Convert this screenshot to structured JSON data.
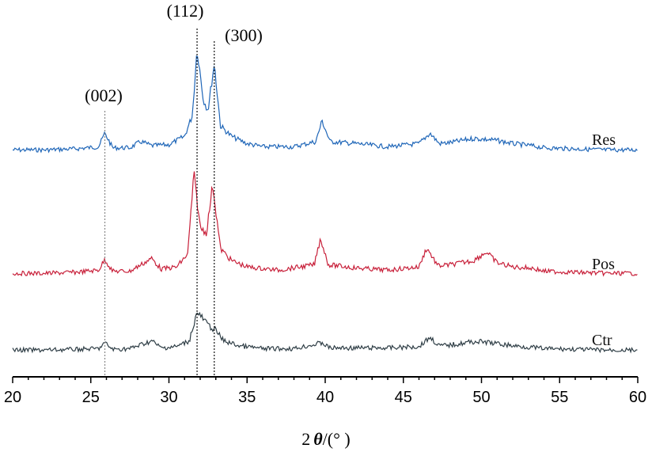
{
  "chart_data": {
    "type": "line",
    "title": "",
    "xlabel_parts": [
      "2",
      "θ",
      "/(°  )"
    ],
    "ylabel": "",
    "xlim": [
      20,
      60
    ],
    "x_ticks": [
      20,
      25,
      30,
      35,
      40,
      45,
      50,
      55,
      60
    ],
    "x_tick_labels": [
      "20",
      "25",
      "30",
      "35",
      "40",
      "45",
      "50",
      "55",
      "60"
    ],
    "grid": false,
    "legend": "inline-right",
    "y_axis_visible": false,
    "peak_markers": [
      {
        "label": "(002)",
        "x": 25.9
      },
      {
        "label": "(112)",
        "x": 31.8
      },
      {
        "label": "(300)",
        "x": 32.9
      }
    ],
    "series": [
      {
        "name": "Res",
        "color": "#1f66b8",
        "points": [
          [
            20,
            0.02
          ],
          [
            22,
            0.02
          ],
          [
            24,
            0.03
          ],
          [
            25.5,
            0.05
          ],
          [
            25.9,
            0.18
          ],
          [
            26.4,
            0.04
          ],
          [
            27.5,
            0.04
          ],
          [
            28.2,
            0.1
          ],
          [
            28.9,
            0.06
          ],
          [
            30,
            0.07
          ],
          [
            31,
            0.15
          ],
          [
            31.5,
            0.35
          ],
          [
            31.8,
            1.0
          ],
          [
            32.2,
            0.5
          ],
          [
            32.5,
            0.4
          ],
          [
            32.9,
            0.85
          ],
          [
            33.3,
            0.25
          ],
          [
            34,
            0.15
          ],
          [
            35,
            0.08
          ],
          [
            36,
            0.05
          ],
          [
            38,
            0.05
          ],
          [
            39.4,
            0.1
          ],
          [
            39.8,
            0.3
          ],
          [
            40.3,
            0.1
          ],
          [
            42,
            0.08
          ],
          [
            44,
            0.05
          ],
          [
            46,
            0.08
          ],
          [
            46.7,
            0.18
          ],
          [
            47.3,
            0.08
          ],
          [
            48,
            0.09
          ],
          [
            49.5,
            0.13
          ],
          [
            50.3,
            0.12
          ],
          [
            51,
            0.11
          ],
          [
            52,
            0.08
          ],
          [
            53.2,
            0.06
          ],
          [
            54,
            0.04
          ],
          [
            56,
            0.03
          ],
          [
            58,
            0.02
          ],
          [
            60,
            0.02
          ]
        ]
      },
      {
        "name": "Pos",
        "color": "#c8203a",
        "points": [
          [
            20,
            0.02
          ],
          [
            22,
            0.02
          ],
          [
            24,
            0.03
          ],
          [
            25.5,
            0.05
          ],
          [
            25.9,
            0.15
          ],
          [
            26.4,
            0.04
          ],
          [
            27.5,
            0.04
          ],
          [
            28.9,
            0.16
          ],
          [
            29.5,
            0.06
          ],
          [
            30.5,
            0.08
          ],
          [
            31.2,
            0.2
          ],
          [
            31.6,
            0.95
          ],
          [
            32,
            0.45
          ],
          [
            32.4,
            0.4
          ],
          [
            32.8,
            0.85
          ],
          [
            33.3,
            0.25
          ],
          [
            34,
            0.14
          ],
          [
            35,
            0.08
          ],
          [
            37,
            0.05
          ],
          [
            39.3,
            0.1
          ],
          [
            39.7,
            0.35
          ],
          [
            40.2,
            0.1
          ],
          [
            42,
            0.07
          ],
          [
            44,
            0.05
          ],
          [
            46,
            0.08
          ],
          [
            46.5,
            0.26
          ],
          [
            47.2,
            0.09
          ],
          [
            48,
            0.1
          ],
          [
            49.5,
            0.14
          ],
          [
            50.3,
            0.22
          ],
          [
            51,
            0.12
          ],
          [
            52,
            0.08
          ],
          [
            53.2,
            0.07
          ],
          [
            54,
            0.04
          ],
          [
            56,
            0.03
          ],
          [
            58,
            0.02
          ],
          [
            60,
            0.02
          ]
        ]
      },
      {
        "name": "Ctr",
        "color": "#2f3e46",
        "points": [
          [
            20,
            0.02
          ],
          [
            22,
            0.02
          ],
          [
            24,
            0.03
          ],
          [
            25.5,
            0.04
          ],
          [
            25.9,
            0.12
          ],
          [
            26.4,
            0.03
          ],
          [
            27.5,
            0.04
          ],
          [
            28.9,
            0.15
          ],
          [
            29.5,
            0.05
          ],
          [
            30.5,
            0.07
          ],
          [
            31.3,
            0.15
          ],
          [
            31.8,
            0.55
          ],
          [
            32.2,
            0.45
          ],
          [
            32.6,
            0.35
          ],
          [
            32.9,
            0.32
          ],
          [
            33.5,
            0.15
          ],
          [
            34.5,
            0.08
          ],
          [
            36,
            0.04
          ],
          [
            38,
            0.04
          ],
          [
            39.8,
            0.12
          ],
          [
            40.3,
            0.05
          ],
          [
            42,
            0.05
          ],
          [
            44,
            0.05
          ],
          [
            46,
            0.07
          ],
          [
            46.7,
            0.2
          ],
          [
            47.3,
            0.08
          ],
          [
            48,
            0.09
          ],
          [
            49.5,
            0.14
          ],
          [
            50.3,
            0.13
          ],
          [
            51,
            0.11
          ],
          [
            52,
            0.08
          ],
          [
            53.2,
            0.06
          ],
          [
            54,
            0.04
          ],
          [
            56,
            0.03
          ],
          [
            58,
            0.02
          ],
          [
            60,
            0.02
          ]
        ]
      }
    ]
  }
}
